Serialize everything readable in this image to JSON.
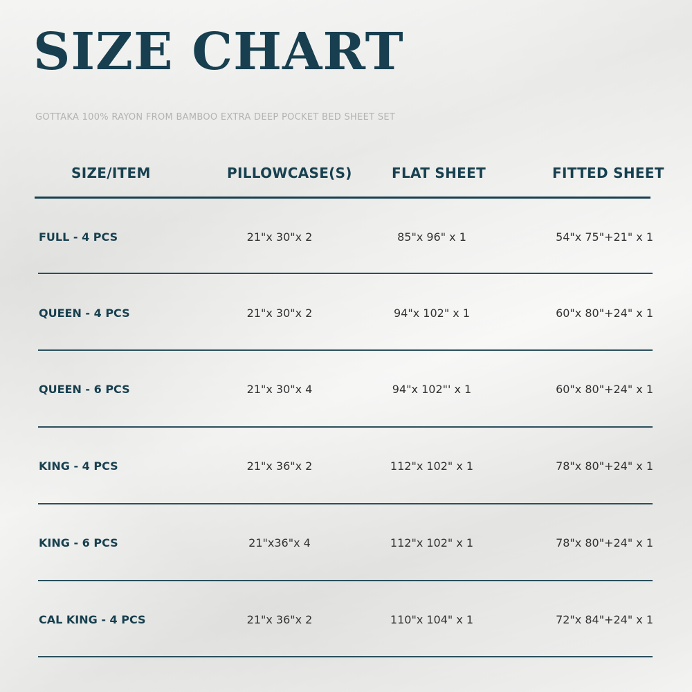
{
  "title": "SIZE CHART",
  "subtitle": "GOTTAKA 100% RAYON FROM BAMBOO EXTRA DEEP POCKET BED SHEET SET",
  "headers": [
    "SIZE/ITEM",
    "PILLOWCASE(S)",
    "FLAT SHEET",
    "FITTED SHEET"
  ],
  "rows": [
    {
      "size": "FULL - 4 PCS",
      "pillowcase": "21\"x 30\"x 2",
      "flat": "85\"x 96\" x 1",
      "fitted": "54\"x 75\"+21\" x 1"
    },
    {
      "size": "QUEEN - 4 PCS",
      "pillowcase": "21\"x 30\"x 2",
      "flat": "94\"x 102\" x 1",
      "fitted": "60\"x 80\"+24\" x 1"
    },
    {
      "size": "QUEEN - 6 PCS",
      "pillowcase": "21\"x 30\"x 4",
      "flat": "94\"x 102\"' x 1",
      "fitted": "60\"x 80\"+24\" x 1"
    },
    {
      "size": "KING - 4 PCS",
      "pillowcase": "21\"x 36\"x 2",
      "flat": "112\"x 102\" x 1",
      "fitted": "78\"x 80\"+24\" x 1"
    },
    {
      "size": "KING - 6 PCS",
      "pillowcase": "21\"x36\"x 4",
      "flat": "112\"x 102\" x 1",
      "fitted": "78\"x 80\"+24\" x 1"
    },
    {
      "size": "CAL KING - 4 PCS",
      "pillowcase": "21\"x 36\"x 2",
      "flat": "110\"x 104\" x 1",
      "fitted": "72\"x 84\"+24\" x 1"
    }
  ],
  "colors": {
    "accent": "#173f4f",
    "subtitle": "#b3b3b1"
  }
}
